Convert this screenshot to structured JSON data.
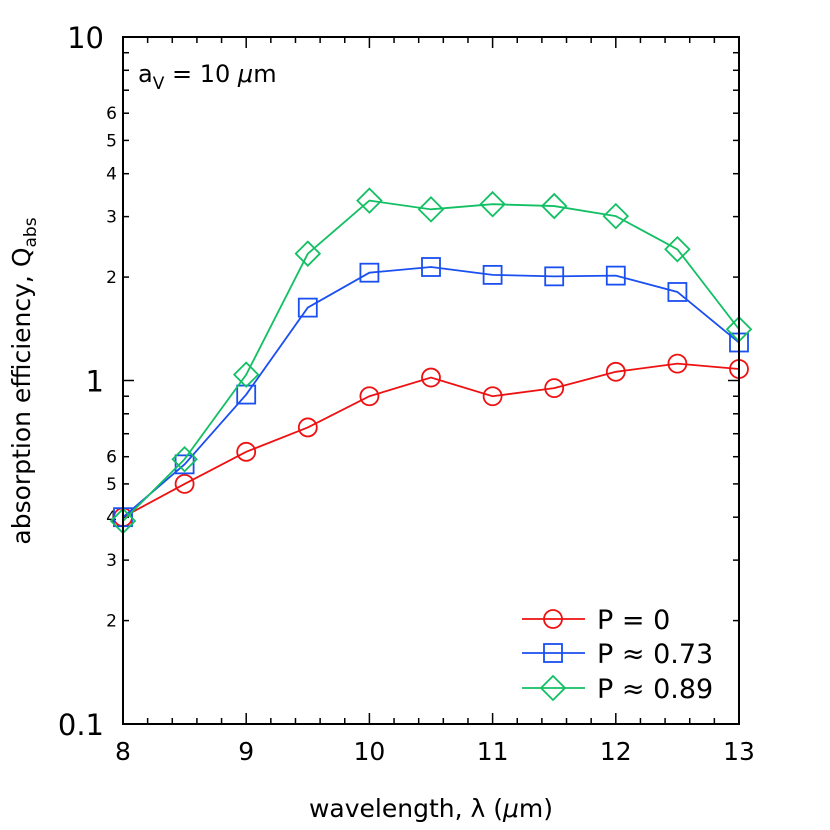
{
  "chart_data": {
    "type": "line",
    "title": "",
    "annotation": {
      "base": "a",
      "sub": "V",
      "rest": " = 10 ",
      "unit_italic": "μ",
      "unit": "m"
    },
    "xlabel": "wavelength, λ (μm)",
    "xlabel_parts": {
      "pre": "wavelength, λ (",
      "italic": "μ",
      "post": "m)"
    },
    "ylabel": "absorption efficiency, Q_abs",
    "ylabel_parts": {
      "main": "absorption efficiency, Q",
      "sub": "abs"
    },
    "xlim": [
      8,
      13
    ],
    "ylim": [
      0.1,
      10
    ],
    "yscale": "log",
    "x_ticks": [
      8,
      9,
      10,
      11,
      12,
      13
    ],
    "x_tick_labels": [
      "8",
      "9",
      "10",
      "11",
      "12",
      "13"
    ],
    "x_minor_step": 0.2,
    "y_major_ticks": [
      0.1,
      1,
      10
    ],
    "y_major_labels": [
      "0.1",
      "1",
      "10"
    ],
    "y_minor_labels": [
      {
        "value": 0.2,
        "label": "2"
      },
      {
        "value": 0.3,
        "label": "3"
      },
      {
        "value": 0.4,
        "label": "4"
      },
      {
        "value": 0.5,
        "label": "5"
      },
      {
        "value": 0.6,
        "label": "6"
      },
      {
        "value": 2,
        "label": "2"
      },
      {
        "value": 3,
        "label": "3"
      },
      {
        "value": 4,
        "label": "4"
      },
      {
        "value": 5,
        "label": "5"
      },
      {
        "value": 6,
        "label": "6"
      }
    ],
    "grid": false,
    "legend_position": "lower right",
    "x": [
      8,
      8.5,
      9,
      9.5,
      10,
      10.5,
      11,
      11.5,
      12,
      12.5,
      13
    ],
    "series": [
      {
        "name": "P = 0",
        "color": "#ee1111",
        "marker": "circle",
        "values": [
          0.4,
          0.5,
          0.62,
          0.73,
          0.9,
          1.02,
          0.9,
          0.95,
          1.06,
          1.12,
          1.08
        ]
      },
      {
        "name": "P ≈ 0.73",
        "color": "#1a4ff0",
        "marker": "square",
        "values": [
          0.4,
          0.57,
          0.91,
          1.63,
          2.06,
          2.14,
          2.03,
          2.01,
          2.02,
          1.81,
          1.29
        ]
      },
      {
        "name": "P ≈ 0.89",
        "color": "#12c063",
        "marker": "diamond",
        "values": [
          0.39,
          0.59,
          1.04,
          2.34,
          3.34,
          3.15,
          3.26,
          3.22,
          3.01,
          2.41,
          1.41
        ]
      }
    ]
  }
}
